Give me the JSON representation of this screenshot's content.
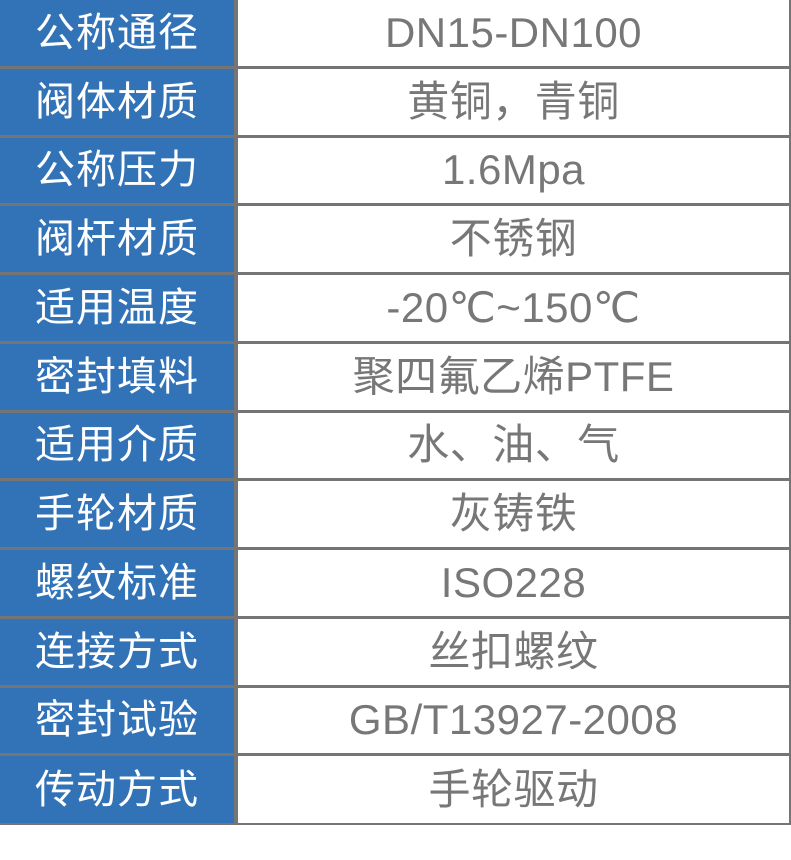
{
  "colors": {
    "header_bg": "#3273b8",
    "border": "#757575",
    "label_text": "#ffffff",
    "value_text": "#777777",
    "cell_bg": "#ffffff"
  },
  "rows": [
    {
      "label": "公称通径",
      "value": "DN15-DN100"
    },
    {
      "label": "阀体材质",
      "value": "黄铜，青铜"
    },
    {
      "label": "公称压力",
      "value": "1.6Mpa"
    },
    {
      "label": "阀杆材质",
      "value": "不锈钢"
    },
    {
      "label": "适用温度",
      "value": "-20℃~150℃"
    },
    {
      "label": "密封填料",
      "value": "聚四氟乙烯PTFE"
    },
    {
      "label": "适用介质",
      "value": "水、油、气"
    },
    {
      "label": "手轮材质",
      "value": "灰铸铁"
    },
    {
      "label": "螺纹标准",
      "value": "ISO228"
    },
    {
      "label": "连接方式",
      "value": "丝扣螺纹"
    },
    {
      "label": "密封试验",
      "value": "GB/T13927-2008"
    },
    {
      "label": "传动方式",
      "value": "手轮驱动"
    }
  ]
}
